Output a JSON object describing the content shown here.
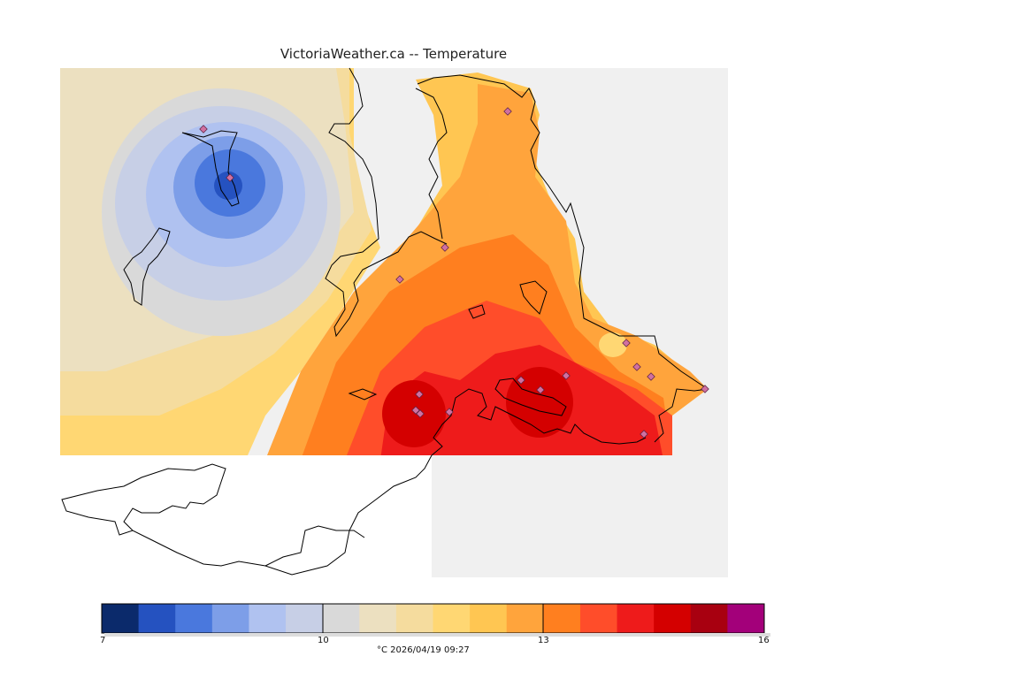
{
  "title": "VictoriaWeather.ca -- Temperature",
  "colorbar": {
    "colors": [
      "#0b2a6b",
      "#2552c0",
      "#4a78dd",
      "#7d9ee8",
      "#b0c2f0",
      "#c7cfe6",
      "#d9d9d9",
      "#ece0c0",
      "#f5dc9e",
      "#ffd773",
      "#ffc652",
      "#ffa43c",
      "#ff7f1f",
      "#ff4d2a",
      "#ee1b1b",
      "#d40000",
      "#a80010",
      "#a3007a"
    ],
    "min": 7,
    "max": 16,
    "tick_labels": [
      "7",
      "10",
      "13",
      "16"
    ],
    "unit_label": "°C  2026/04/19 09:27"
  },
  "palette": {
    "background": "#f0f0f0",
    "coast": "#000000",
    "station_marker": "#d070a0"
  }
}
